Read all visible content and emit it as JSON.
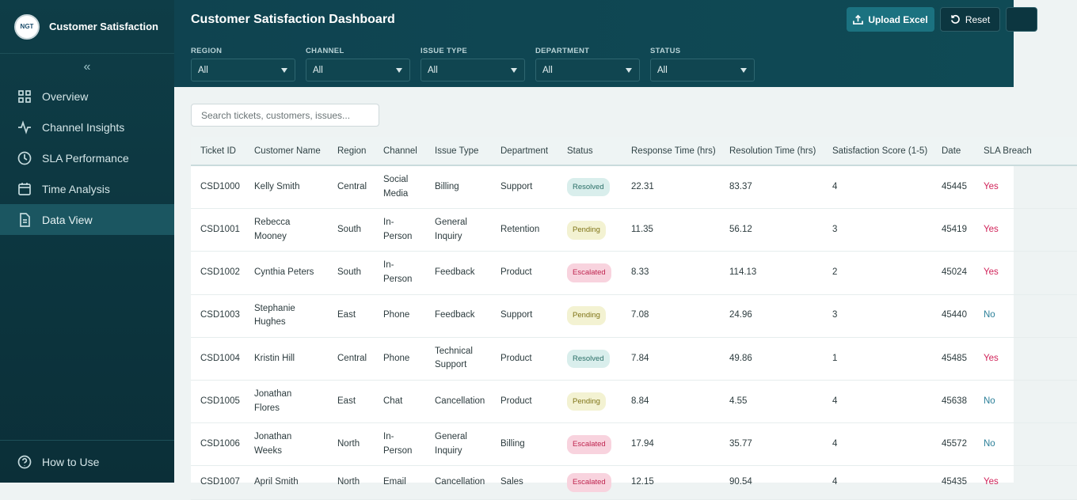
{
  "sidebar": {
    "logo": "NGT",
    "brand": "Customer Satisfaction",
    "nav": [
      "Overview",
      "Channel Insights",
      "SLA Performance",
      "Time Analysis",
      "Data View"
    ],
    "footer": "How to Use"
  },
  "header": {
    "title": "Customer Satisfaction Dashboard",
    "buttons": [
      "Upload Excel",
      "Reset"
    ]
  },
  "filters": [
    {
      "label": "REGION",
      "value": "All"
    },
    {
      "label": "CHANNEL",
      "value": "All"
    },
    {
      "label": "ISSUE TYPE",
      "value": "All"
    },
    {
      "label": "DEPARTMENT",
      "value": "All"
    },
    {
      "label": "STATUS",
      "value": "All"
    }
  ],
  "search": {
    "placeholder": "Search tickets, customers, issues..."
  },
  "table": {
    "columns": [
      "Ticket ID",
      "Customer Name",
      "Region",
      "Channel",
      "Issue Type",
      "Department",
      "Status",
      "Response Time (hrs)",
      "Resolution Time (hrs)",
      "Satisfaction Score (1-5)",
      "Date",
      "SLA Breach"
    ],
    "rows": [
      [
        "CSD1000",
        "Kelly Smith",
        "Central",
        "Social Media",
        "Billing",
        "Support",
        "Resolved",
        "22.31",
        "83.37",
        "4",
        "45445",
        "Yes"
      ],
      [
        "CSD1001",
        "Rebecca Mooney",
        "South",
        "In-Person",
        "General Inquiry",
        "Retention",
        "Pending",
        "11.35",
        "56.12",
        "3",
        "45419",
        "Yes"
      ],
      [
        "CSD1002",
        "Cynthia Peters",
        "South",
        "In-Person",
        "Feedback",
        "Product",
        "Escalated",
        "8.33",
        "114.13",
        "2",
        "45024",
        "Yes"
      ],
      [
        "CSD1003",
        "Stephanie Hughes",
        "East",
        "Phone",
        "Feedback",
        "Support",
        "Pending",
        "7.08",
        "24.96",
        "3",
        "45440",
        "No"
      ],
      [
        "CSD1004",
        "Kristin Hill",
        "Central",
        "Phone",
        "Technical Support",
        "Product",
        "Resolved",
        "7.84",
        "49.86",
        "1",
        "45485",
        "Yes"
      ],
      [
        "CSD1005",
        "Jonathan Flores",
        "East",
        "Chat",
        "Cancellation",
        "Product",
        "Pending",
        "8.84",
        "4.55",
        "4",
        "45638",
        "No"
      ],
      [
        "CSD1006",
        "Jonathan Weeks",
        "North",
        "In-Person",
        "General Inquiry",
        "Billing",
        "Escalated",
        "17.94",
        "35.77",
        "4",
        "45572",
        "No"
      ],
      [
        "CSD1007",
        "April Smith",
        "North",
        "Email",
        "Cancellation",
        "Sales",
        "Escalated",
        "12.15",
        "90.54",
        "4",
        "45435",
        "Yes"
      ]
    ]
  }
}
